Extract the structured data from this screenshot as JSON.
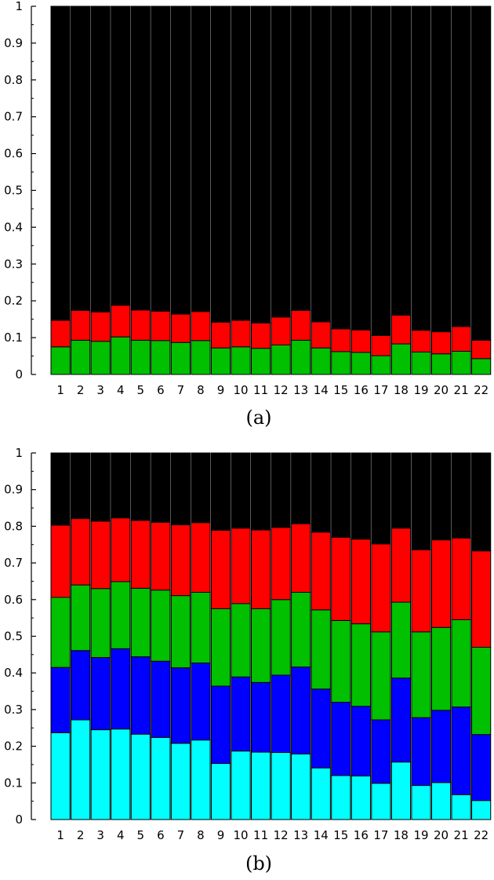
{
  "chart_data": [
    {
      "type": "bar",
      "stacked": true,
      "caption": "(a)",
      "categories": [
        "1",
        "2",
        "3",
        "4",
        "5",
        "6",
        "7",
        "8",
        "9",
        "10",
        "11",
        "12",
        "13",
        "14",
        "15",
        "16",
        "17",
        "18",
        "19",
        "20",
        "21",
        "22"
      ],
      "ylim": [
        0,
        1
      ],
      "yticks": [
        "0",
        "0.1",
        "0.2",
        "0.3",
        "0.4",
        "0.5",
        "0.6",
        "0.7",
        "0.8",
        "0.9",
        "1"
      ],
      "grid": false,
      "legend": "none",
      "series": [
        {
          "color": "#00c000",
          "values": [
            0.075,
            0.093,
            0.09,
            0.102,
            0.093,
            0.092,
            0.087,
            0.092,
            0.072,
            0.075,
            0.071,
            0.08,
            0.093,
            0.072,
            0.062,
            0.06,
            0.051,
            0.083,
            0.061,
            0.056,
            0.063,
            0.043
          ]
        },
        {
          "color": "#ff0000",
          "values": [
            0.072,
            0.081,
            0.08,
            0.086,
            0.082,
            0.08,
            0.077,
            0.079,
            0.07,
            0.072,
            0.069,
            0.076,
            0.081,
            0.071,
            0.062,
            0.061,
            0.055,
            0.078,
            0.059,
            0.06,
            0.067,
            0.05
          ]
        },
        {
          "color": "#000000",
          "values": [
            0.853,
            0.826,
            0.83,
            0.812,
            0.825,
            0.828,
            0.836,
            0.829,
            0.858,
            0.853,
            0.86,
            0.844,
            0.826,
            0.857,
            0.876,
            0.879,
            0.894,
            0.839,
            0.88,
            0.884,
            0.87,
            0.907
          ]
        }
      ]
    },
    {
      "type": "bar",
      "stacked": true,
      "caption": "(b)",
      "categories": [
        "1",
        "2",
        "3",
        "4",
        "5",
        "6",
        "7",
        "8",
        "9",
        "10",
        "11",
        "12",
        "13",
        "14",
        "15",
        "16",
        "17",
        "18",
        "19",
        "20",
        "21",
        "22"
      ],
      "ylim": [
        0,
        1
      ],
      "yticks": [
        "0",
        "0.1",
        "0.2",
        "0.3",
        "0.4",
        "0.5",
        "0.6",
        "0.7",
        "0.8",
        "0.9",
        "1"
      ],
      "grid": false,
      "legend": "none",
      "series": [
        {
          "color": "#00ffff",
          "values": [
            0.237,
            0.272,
            0.245,
            0.247,
            0.233,
            0.224,
            0.208,
            0.217,
            0.153,
            0.187,
            0.184,
            0.183,
            0.179,
            0.141,
            0.12,
            0.119,
            0.099,
            0.157,
            0.093,
            0.101,
            0.068,
            0.052
          ]
        },
        {
          "color": "#0000ff",
          "values": [
            0.178,
            0.189,
            0.197,
            0.219,
            0.211,
            0.208,
            0.206,
            0.21,
            0.211,
            0.202,
            0.19,
            0.211,
            0.237,
            0.215,
            0.2,
            0.19,
            0.173,
            0.229,
            0.185,
            0.197,
            0.239,
            0.18
          ]
        },
        {
          "color": "#00c000",
          "values": [
            0.191,
            0.179,
            0.188,
            0.183,
            0.187,
            0.194,
            0.197,
            0.193,
            0.211,
            0.2,
            0.201,
            0.206,
            0.204,
            0.216,
            0.223,
            0.225,
            0.24,
            0.207,
            0.234,
            0.226,
            0.238,
            0.238
          ]
        },
        {
          "color": "#ff0000",
          "values": [
            0.197,
            0.181,
            0.184,
            0.174,
            0.185,
            0.185,
            0.193,
            0.19,
            0.214,
            0.206,
            0.215,
            0.197,
            0.187,
            0.212,
            0.227,
            0.231,
            0.24,
            0.202,
            0.224,
            0.239,
            0.223,
            0.263
          ]
        },
        {
          "color": "#000000",
          "values": [
            0.197,
            0.179,
            0.186,
            0.177,
            0.184,
            0.189,
            0.196,
            0.19,
            0.211,
            0.205,
            0.21,
            0.203,
            0.193,
            0.216,
            0.23,
            0.235,
            0.248,
            0.205,
            0.264,
            0.237,
            0.232,
            0.267
          ]
        }
      ]
    }
  ]
}
